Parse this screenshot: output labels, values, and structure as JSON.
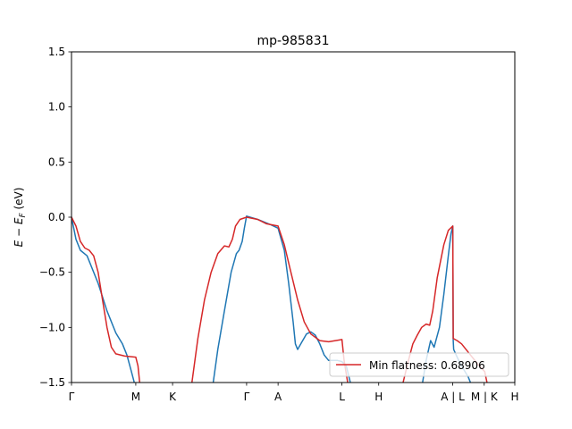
{
  "chart_data": {
    "type": "line",
    "title": "mp-985831",
    "ylabel": "E − E_F (eV)",
    "ylabel_parts": {
      "e": "E",
      "minus": " − ",
      "ef": "E",
      "f_sub": "F",
      "unit": " (eV)"
    },
    "xlabel": "",
    "xlim": [
      0,
      1
    ],
    "ylim": [
      -1.5,
      1.5
    ],
    "y_ticks": [
      -1.5,
      -1.0,
      -0.5,
      0.0,
      0.5,
      1.0,
      1.5
    ],
    "y_tick_labels": [
      "−1.5",
      "−1.0",
      "−0.5",
      "0.0",
      "0.5",
      "1.0",
      "1.5"
    ],
    "x_ticks": [
      {
        "pos": 0.0,
        "label": "Γ"
      },
      {
        "pos": 0.145,
        "label": "M"
      },
      {
        "pos": 0.228,
        "label": "K"
      },
      {
        "pos": 0.395,
        "label": "Γ"
      },
      {
        "pos": 0.466,
        "label": "A"
      },
      {
        "pos": 0.61,
        "label": "L"
      },
      {
        "pos": 0.693,
        "label": "H"
      },
      {
        "pos": 0.86,
        "label": "A | L"
      },
      {
        "pos": 0.931,
        "label": "M | K"
      },
      {
        "pos": 1.0,
        "label": "H"
      }
    ],
    "grid": false,
    "legend": {
      "position": "lower-right",
      "entries": [
        {
          "label": "Min flatness: 0.68906",
          "color": "#d62728"
        }
      ]
    },
    "series": [
      {
        "color": "#1f77b4",
        "segments": [
          [
            [
              0.0,
              0.0
            ],
            [
              0.01,
              -0.2
            ],
            [
              0.02,
              -0.3
            ],
            [
              0.035,
              -0.35
            ],
            [
              0.06,
              -0.6
            ],
            [
              0.08,
              -0.85
            ],
            [
              0.1,
              -1.05
            ],
            [
              0.115,
              -1.15
            ],
            [
              0.125,
              -1.25
            ],
            [
              0.135,
              -1.4
            ],
            [
              0.145,
              -1.55
            ]
          ],
          [
            [
              0.318,
              -1.55
            ],
            [
              0.33,
              -1.2
            ],
            [
              0.345,
              -0.85
            ],
            [
              0.36,
              -0.5
            ],
            [
              0.372,
              -0.33
            ],
            [
              0.378,
              -0.3
            ],
            [
              0.385,
              -0.22
            ],
            [
              0.39,
              -0.1
            ],
            [
              0.395,
              0.01
            ],
            [
              0.42,
              -0.02
            ],
            [
              0.45,
              -0.07
            ],
            [
              0.466,
              -0.1
            ],
            [
              0.48,
              -0.3
            ],
            [
              0.49,
              -0.6
            ],
            [
              0.5,
              -0.95
            ],
            [
              0.505,
              -1.15
            ],
            [
              0.51,
              -1.2
            ],
            [
              0.52,
              -1.13
            ],
            [
              0.53,
              -1.06
            ],
            [
              0.54,
              -1.04
            ],
            [
              0.55,
              -1.07
            ],
            [
              0.56,
              -1.15
            ],
            [
              0.57,
              -1.25
            ],
            [
              0.58,
              -1.3
            ],
            [
              0.6,
              -1.3
            ],
            [
              0.61,
              -1.31
            ],
            [
              0.62,
              -1.35
            ],
            [
              0.632,
              -1.55
            ]
          ],
          [
            [
              0.79,
              -1.55
            ],
            [
              0.8,
              -1.3
            ],
            [
              0.81,
              -1.12
            ],
            [
              0.818,
              -1.18
            ],
            [
              0.83,
              -1.0
            ],
            [
              0.84,
              -0.7
            ],
            [
              0.85,
              -0.35
            ],
            [
              0.856,
              -0.15
            ],
            [
              0.86,
              -0.08
            ],
            [
              0.861,
              -1.12
            ],
            [
              0.862,
              -1.2
            ],
            [
              0.87,
              -1.27
            ],
            [
              0.88,
              -1.35
            ],
            [
              0.895,
              -1.45
            ],
            [
              0.905,
              -1.55
            ]
          ]
        ]
      },
      {
        "color": "#d62728",
        "segments": [
          [
            [
              0.0,
              0.0
            ],
            [
              0.01,
              -0.08
            ],
            [
              0.02,
              -0.22
            ],
            [
              0.03,
              -0.28
            ],
            [
              0.04,
              -0.3
            ],
            [
              0.05,
              -0.35
            ],
            [
              0.06,
              -0.5
            ],
            [
              0.07,
              -0.75
            ],
            [
              0.08,
              -1.0
            ],
            [
              0.09,
              -1.18
            ],
            [
              0.1,
              -1.24
            ],
            [
              0.12,
              -1.26
            ],
            [
              0.145,
              -1.27
            ],
            [
              0.15,
              -1.35
            ],
            [
              0.155,
              -1.55
            ]
          ],
          [
            [
              0.27,
              -1.55
            ],
            [
              0.285,
              -1.1
            ],
            [
              0.3,
              -0.75
            ],
            [
              0.315,
              -0.5
            ],
            [
              0.33,
              -0.33
            ],
            [
              0.345,
              -0.26
            ],
            [
              0.355,
              -0.27
            ],
            [
              0.363,
              -0.2
            ],
            [
              0.37,
              -0.08
            ],
            [
              0.38,
              -0.02
            ],
            [
              0.395,
              0.0
            ],
            [
              0.42,
              -0.02
            ],
            [
              0.44,
              -0.06
            ],
            [
              0.466,
              -0.08
            ],
            [
              0.48,
              -0.25
            ],
            [
              0.495,
              -0.5
            ],
            [
              0.51,
              -0.75
            ],
            [
              0.525,
              -0.95
            ],
            [
              0.54,
              -1.06
            ],
            [
              0.56,
              -1.12
            ],
            [
              0.58,
              -1.13
            ],
            [
              0.61,
              -1.11
            ],
            [
              0.615,
              -1.3
            ],
            [
              0.625,
              -1.55
            ]
          ],
          [
            [
              0.745,
              -1.55
            ],
            [
              0.76,
              -1.3
            ],
            [
              0.77,
              -1.15
            ],
            [
              0.78,
              -1.07
            ],
            [
              0.79,
              -1.0
            ],
            [
              0.8,
              -0.97
            ],
            [
              0.808,
              -0.98
            ],
            [
              0.815,
              -0.85
            ],
            [
              0.825,
              -0.55
            ],
            [
              0.84,
              -0.25
            ],
            [
              0.85,
              -0.12
            ],
            [
              0.86,
              -0.08
            ],
            [
              0.861,
              -1.1
            ],
            [
              0.87,
              -1.12
            ],
            [
              0.88,
              -1.15
            ],
            [
              0.9,
              -1.25
            ],
            [
              0.92,
              -1.35
            ],
            [
              0.932,
              -1.4
            ],
            [
              0.94,
              -1.55
            ]
          ]
        ]
      }
    ]
  }
}
